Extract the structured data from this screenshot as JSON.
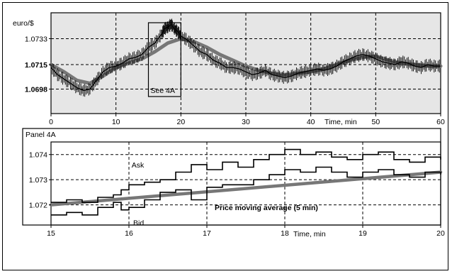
{
  "chart_data": [
    {
      "type": "line",
      "ylabel": "euro/$",
      "xlabel": "Time, min",
      "xlim": [
        0,
        60
      ],
      "ylim": [
        1.0681,
        1.0751
      ],
      "x_ticks": [
        0,
        10,
        20,
        30,
        40,
        50,
        60
      ],
      "x_tick_labels": [
        "0",
        "10",
        "20",
        "30",
        "40",
        "50",
        "60"
      ],
      "y_ticks": [
        1.0698,
        1.0715,
        1.0733
      ],
      "y_tick_labels": [
        "1.0698",
        "1.0715",
        "1.0733"
      ],
      "grid": true,
      "annotations": [
        {
          "text": "See 4A",
          "x_range": [
            15,
            20
          ]
        }
      ],
      "series": [
        {
          "role": "price",
          "x": [
            0,
            1,
            2,
            3,
            4,
            5,
            6,
            7,
            8,
            9,
            10,
            11,
            12,
            13,
            14,
            15,
            16,
            17,
            17.5,
            18,
            18.5,
            19,
            19.5,
            20,
            21,
            22,
            23,
            24,
            25,
            26,
            27,
            28,
            29,
            30,
            31,
            32,
            33,
            34,
            35,
            36,
            37,
            38,
            39,
            40,
            41,
            42,
            43,
            44,
            45,
            46,
            47,
            48,
            49,
            50,
            51,
            52,
            53,
            54,
            55,
            56,
            57,
            58,
            59,
            60
          ],
          "y": [
            1.0713,
            1.0708,
            1.0705,
            1.0702,
            1.0699,
            1.0697,
            1.0698,
            1.0704,
            1.071,
            1.0713,
            1.0714,
            1.0716,
            1.0719,
            1.072,
            1.0722,
            1.0727,
            1.073,
            1.0736,
            1.074,
            1.0741,
            1.0743,
            1.074,
            1.0738,
            1.0735,
            1.0732,
            1.0728,
            1.0724,
            1.0722,
            1.0718,
            1.0716,
            1.0713,
            1.0713,
            1.0712,
            1.071,
            1.0708,
            1.0709,
            1.0711,
            1.0708,
            1.0707,
            1.0706,
            1.0707,
            1.0709,
            1.071,
            1.0711,
            1.0712,
            1.0711,
            1.0712,
            1.0714,
            1.0717,
            1.0719,
            1.0721,
            1.0722,
            1.0721,
            1.0719,
            1.0717,
            1.0716,
            1.0715,
            1.0717,
            1.0716,
            1.0714,
            1.0713,
            1.0715,
            1.0714,
            1.0714
          ]
        },
        {
          "role": "trend",
          "x": [
            0,
            2,
            4,
            6,
            8,
            10,
            12,
            14,
            16,
            18,
            20,
            22,
            24,
            26,
            28,
            30,
            32,
            34,
            36,
            38,
            40,
            42,
            44,
            46,
            48,
            50,
            52,
            54,
            56,
            58,
            60
          ],
          "y": [
            1.0715,
            1.071,
            1.0704,
            1.0702,
            1.0707,
            1.0713,
            1.0716,
            1.0719,
            1.0724,
            1.073,
            1.0733,
            1.0731,
            1.0727,
            1.0722,
            1.0718,
            1.0714,
            1.0711,
            1.0709,
            1.0708,
            1.0709,
            1.071,
            1.0712,
            1.0715,
            1.0718,
            1.072,
            1.0721,
            1.0718,
            1.0716,
            1.0715,
            1.0714,
            1.0714
          ]
        }
      ]
    },
    {
      "type": "line",
      "title": "Panel 4A",
      "xlabel": "Time, min",
      "xlim": [
        15,
        20
      ],
      "ylim": [
        1.0712,
        1.0745
      ],
      "x_ticks": [
        15,
        16,
        17,
        18,
        19,
        20
      ],
      "x_tick_labels": [
        "15",
        "16",
        "17",
        "18",
        "19",
        "20"
      ],
      "y_ticks": [
        1.072,
        1.073,
        1.074
      ],
      "y_tick_labels": [
        "1.072",
        "1.073",
        "1.074"
      ],
      "grid": true,
      "annotations": [
        {
          "text": "Ask",
          "x": 15.98,
          "y": 1.0736
        },
        {
          "text": "Bid",
          "x": 16.0,
          "y": 1.0713
        },
        {
          "text": "Price moving average (5 min)",
          "x": 17.1,
          "y": 1.0719
        }
      ],
      "series": [
        {
          "name": "Ask",
          "x": [
            15.0,
            15.2,
            15.4,
            15.6,
            15.8,
            15.9,
            16.0,
            16.2,
            16.4,
            16.6,
            16.8,
            17.0,
            17.2,
            17.4,
            17.6,
            17.8,
            18.0,
            18.2,
            18.4,
            18.6,
            18.8,
            19.0,
            19.2,
            19.4,
            19.6,
            19.8,
            20.0
          ],
          "y": [
            1.0721,
            1.0722,
            1.0721,
            1.0723,
            1.0724,
            1.0726,
            1.0728,
            1.0729,
            1.073,
            1.0733,
            1.0736,
            1.0734,
            1.0737,
            1.0735,
            1.0738,
            1.074,
            1.0742,
            1.074,
            1.0741,
            1.0739,
            1.0738,
            1.074,
            1.0741,
            1.0738,
            1.0737,
            1.0739,
            1.0738
          ]
        },
        {
          "name": "Bid",
          "x": [
            15.0,
            15.2,
            15.4,
            15.6,
            15.8,
            15.9,
            16.0,
            16.2,
            16.4,
            16.6,
            16.8,
            17.0,
            17.2,
            17.4,
            17.6,
            17.8,
            18.0,
            18.2,
            18.4,
            18.6,
            18.8,
            19.0,
            19.2,
            19.4,
            19.6,
            19.8,
            20.0
          ],
          "y": [
            1.0716,
            1.0717,
            1.0716,
            1.0719,
            1.0721,
            1.0718,
            1.0719,
            1.0722,
            1.0725,
            1.0726,
            1.0722,
            1.0727,
            1.0728,
            1.0728,
            1.073,
            1.0732,
            1.0734,
            1.0733,
            1.0735,
            1.0733,
            1.0731,
            1.0733,
            1.0734,
            1.0732,
            1.0731,
            1.0733,
            1.0732
          ]
        },
        {
          "name": "Price moving average (5 min)",
          "x": [
            15,
            20
          ],
          "y": [
            1.072,
            1.0733
          ]
        }
      ]
    }
  ]
}
